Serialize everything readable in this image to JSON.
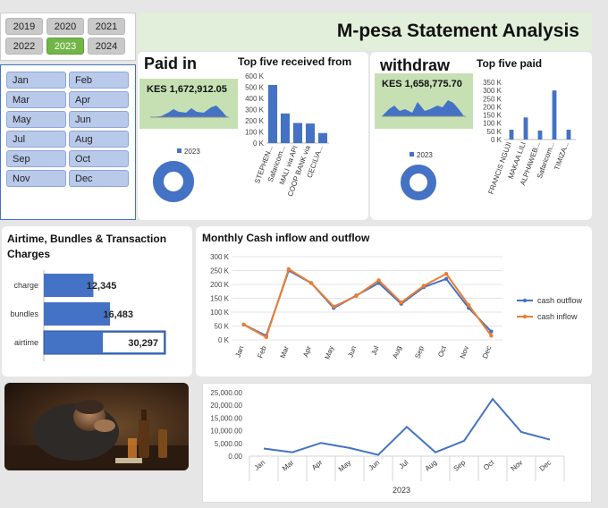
{
  "header": {
    "title": "M-pesa Statement Analysis"
  },
  "years": {
    "items": [
      "2019",
      "2020",
      "2021",
      "2022",
      "2023",
      "2024"
    ],
    "selected": "2023"
  },
  "months": {
    "items": [
      "Jan",
      "Feb",
      "Mar",
      "Apr",
      "May",
      "Jun",
      "Jul",
      "Aug",
      "Sep",
      "Oct",
      "Nov",
      "Dec"
    ]
  },
  "paid_in": {
    "heading": "Paid in",
    "kpi": "KES 1,672,912.05",
    "legend": "2023",
    "top_title": "Top five received from"
  },
  "withdraw": {
    "heading": "withdraw",
    "kpi": "KES 1,658,775.70",
    "legend": "2023",
    "top_title": "Top five paid"
  },
  "charges": {
    "title": "Airtime, Bundles & Transaction Charges"
  },
  "monthly": {
    "title": "Monthly  Cash inflow and outflow"
  },
  "colors": {
    "accent_blue": "#4472c4",
    "accent_orange": "#ed7d31",
    "kpi_green": "#c6e0b4",
    "title_green": "#e2efda",
    "selected_green": "#72b548"
  },
  "chart_data": [
    {
      "id": "top-received",
      "type": "bar",
      "title": "Top five received from",
      "categories": [
        "STEPHEN...",
        "Safaricom...",
        "MALI via API",
        "COOP BANK via",
        "CECILIA..."
      ],
      "values": [
        520000,
        265000,
        180000,
        175000,
        90000
      ],
      "yticks": [
        "0 K",
        "100 K",
        "200 K",
        "300 K",
        "400 K",
        "500 K",
        "600 K"
      ],
      "ylim": [
        0,
        600000
      ]
    },
    {
      "id": "top-paid",
      "type": "bar",
      "title": "Top five paid",
      "categories": [
        "FRANCIS NGUJI",
        "MAKAA LILI",
        "ALPHAWEB...",
        "Safaricom...",
        "TIMIZA..."
      ],
      "values": [
        60000,
        135000,
        55000,
        300000,
        60000
      ],
      "yticks": [
        "0 K",
        "50 K",
        "100 K",
        "150 K",
        "200 K",
        "250 K",
        "300 K",
        "350 K"
      ],
      "ylim": [
        0,
        350000
      ]
    },
    {
      "id": "charges-bars",
      "type": "bar",
      "orientation": "horizontal",
      "categories": [
        "charge",
        "bundles",
        "airtime"
      ],
      "values": [
        12345,
        16483,
        30297
      ],
      "labels": [
        "12,345",
        "16,483",
        "30,297"
      ]
    },
    {
      "id": "monthly-flow",
      "type": "line",
      "title": "Monthly  Cash inflow and outflow",
      "categories": [
        "Jan",
        "Feb",
        "Mar",
        "Apr",
        "May",
        "Jun",
        "Jul",
        "Aug",
        "Sep",
        "Oct",
        "Nov",
        "Dec"
      ],
      "series": [
        {
          "name": "cash outflow",
          "color": "#4472c4",
          "values": [
            55000,
            15000,
            250000,
            205000,
            115000,
            160000,
            205000,
            130000,
            190000,
            220000,
            115000,
            30000
          ]
        },
        {
          "name": "cash inflow",
          "color": "#ed7d31",
          "values": [
            55000,
            10000,
            255000,
            205000,
            120000,
            158000,
            215000,
            135000,
            195000,
            238000,
            125000,
            15000
          ]
        }
      ],
      "yticks": [
        "0 K",
        "50 K",
        "100 K",
        "150 K",
        "200 K",
        "250 K",
        "300 K"
      ],
      "ylim": [
        0,
        300000
      ]
    },
    {
      "id": "bottom-line",
      "type": "line",
      "categories": [
        "Jan",
        "Mar",
        "Apr",
        "May",
        "Jun",
        "Jul",
        "Aug",
        "Sep",
        "Oct",
        "Nov",
        "Dec"
      ],
      "values": [
        3000,
        1500,
        5200,
        3200,
        500,
        11500,
        1500,
        6000,
        22500,
        9500,
        6500
      ],
      "yticks": [
        "0.00",
        "5,000.00",
        "10,000.00",
        "15,000.00",
        "20,000.00",
        "25,000.00"
      ],
      "ylim": [
        0,
        25000
      ],
      "xlabel": "2023"
    }
  ]
}
